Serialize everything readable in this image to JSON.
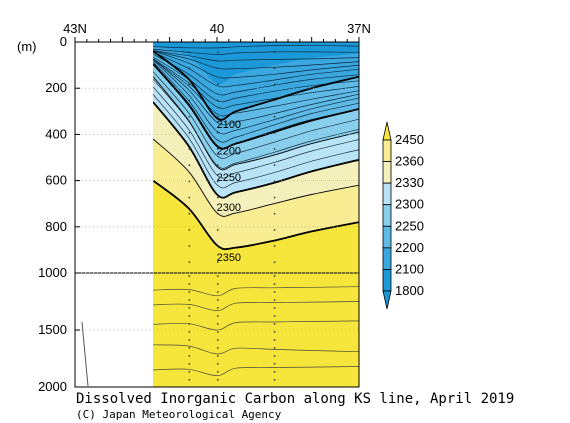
{
  "chart_data": {
    "type": "contour",
    "title": "Dissolved Inorganic Carbon along KS line, April 2019",
    "credit": "(C) Japan Meteorological Agency",
    "y_unit": "(m)",
    "x_ticks": [
      "43N",
      "40",
      "37N"
    ],
    "x_tick_values": [
      43,
      40,
      37
    ],
    "y_ticks": [
      0,
      200,
      400,
      600,
      800,
      1000,
      1500,
      2000
    ],
    "ylim": [
      0,
      2000
    ],
    "y_scale": "piecewise-linear, 0-1000 m and 1000-2000 m segments",
    "x_range": [
      43,
      37
    ],
    "data_region_x": [
      41.35,
      37
    ],
    "reference_depth": 1000,
    "contour_labels": [
      {
        "value": "2100",
        "depth": 355
      },
      {
        "value": "2200",
        "depth": 470
      },
      {
        "value": "2250",
        "depth": 585
      },
      {
        "value": "2300",
        "depth": 715
      },
      {
        "value": "2350",
        "depth": 930
      }
    ],
    "colorbar": {
      "levels": [
        "1800",
        "2100",
        "2200",
        "2250",
        "2300",
        "2330",
        "2360",
        "2450"
      ],
      "colors": [
        "#1a98d8",
        "#3aa8de",
        "#5fbbe6",
        "#88cfee",
        "#b9e3f6",
        "#f4f0bb",
        "#f8ed93",
        "#f6e53a"
      ],
      "extend": "both"
    },
    "palette": {
      "sea_surface": "#1f9fdc",
      "deep_water": "#f6e53a"
    }
  }
}
